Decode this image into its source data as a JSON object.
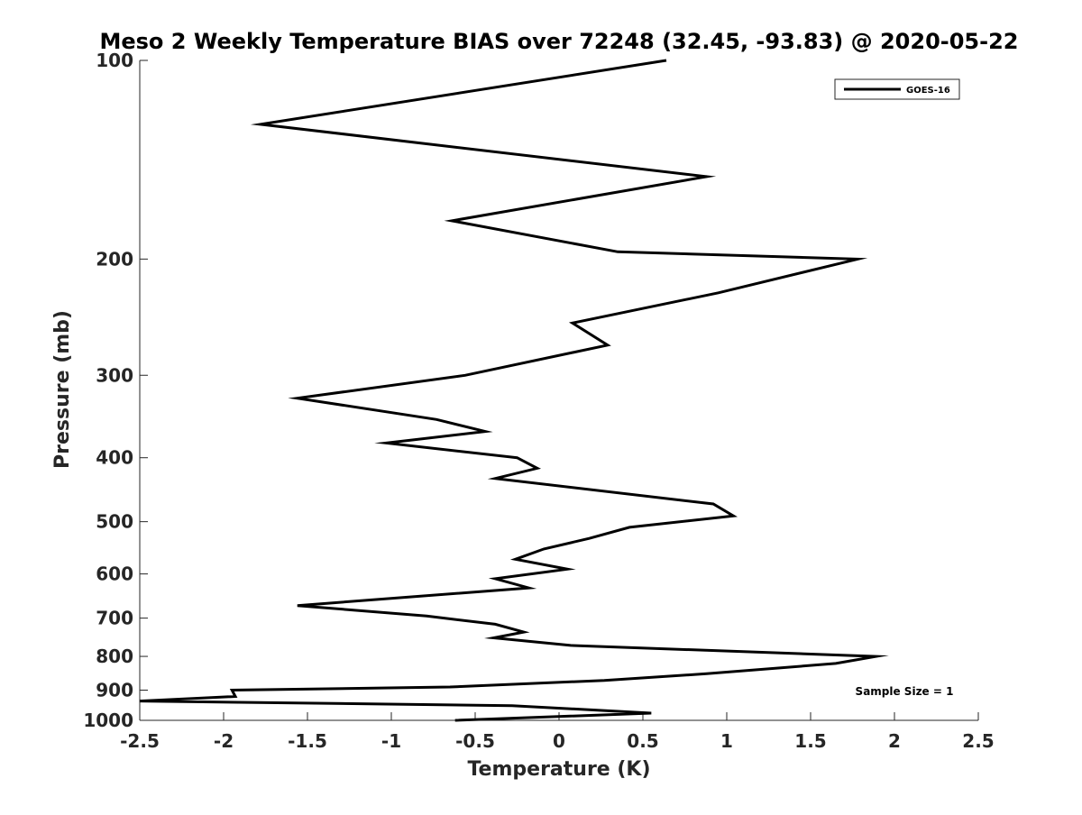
{
  "chart_data": {
    "type": "line",
    "title": "Meso 2 Weekly Temperature BIAS over 72248 (32.45, -93.83) @ 2020-05-22",
    "xlabel": "Temperature (K)",
    "ylabel": "Pressure (mb)",
    "xlim": [
      -2.5,
      2.5
    ],
    "ylim": [
      100,
      1000
    ],
    "y_scale": "log",
    "y_reversed": true,
    "grid": false,
    "legend_position": "top-right",
    "x_ticks": [
      -2.5,
      -2,
      -1.5,
      -1,
      -0.5,
      0,
      0.5,
      1,
      1.5,
      2,
      2.5
    ],
    "x_tick_labels": [
      "-2.5",
      "-2",
      "-1.5",
      "-1",
      "-0.5",
      "0",
      "0.5",
      "1",
      "1.5",
      "2",
      "2.5"
    ],
    "y_ticks": [
      100,
      200,
      300,
      400,
      500,
      600,
      700,
      800,
      900,
      1000
    ],
    "y_tick_labels": [
      "100",
      "200",
      "300",
      "400",
      "500",
      "600",
      "700",
      "800",
      "900",
      "1000"
    ],
    "series": [
      {
        "name": "GOES-16",
        "color": "#000000",
        "points": [
          {
            "x": 0.64,
            "y": 100
          },
          {
            "x": -1.78,
            "y": 125
          },
          {
            "x": 0.88,
            "y": 150
          },
          {
            "x": -0.64,
            "y": 175
          },
          {
            "x": 0.35,
            "y": 195
          },
          {
            "x": 1.78,
            "y": 200
          },
          {
            "x": 0.95,
            "y": 225
          },
          {
            "x": 0.08,
            "y": 250
          },
          {
            "x": 0.29,
            "y": 270
          },
          {
            "x": -0.56,
            "y": 300
          },
          {
            "x": -1.56,
            "y": 325
          },
          {
            "x": -0.73,
            "y": 350
          },
          {
            "x": -0.44,
            "y": 365
          },
          {
            "x": -1.03,
            "y": 380
          },
          {
            "x": -0.25,
            "y": 400
          },
          {
            "x": -0.13,
            "y": 415
          },
          {
            "x": -0.38,
            "y": 430
          },
          {
            "x": 0.92,
            "y": 470
          },
          {
            "x": 1.04,
            "y": 490
          },
          {
            "x": 0.42,
            "y": 510
          },
          {
            "x": 0.18,
            "y": 530
          },
          {
            "x": -0.09,
            "y": 550
          },
          {
            "x": -0.26,
            "y": 570
          },
          {
            "x": 0.05,
            "y": 590
          },
          {
            "x": -0.38,
            "y": 610
          },
          {
            "x": -0.18,
            "y": 630
          },
          {
            "x": -1.56,
            "y": 670
          },
          {
            "x": -0.79,
            "y": 695
          },
          {
            "x": -0.38,
            "y": 715
          },
          {
            "x": -0.21,
            "y": 735
          },
          {
            "x": -0.39,
            "y": 750
          },
          {
            "x": 0.07,
            "y": 770
          },
          {
            "x": 1.89,
            "y": 800
          },
          {
            "x": 1.65,
            "y": 820
          },
          {
            "x": 0.88,
            "y": 850
          },
          {
            "x": 0.27,
            "y": 870
          },
          {
            "x": -0.65,
            "y": 890
          },
          {
            "x": -1.95,
            "y": 900
          },
          {
            "x": -1.93,
            "y": 920
          },
          {
            "x": -2.5,
            "y": 935
          },
          {
            "x": -0.28,
            "y": 950
          },
          {
            "x": 0.55,
            "y": 975
          },
          {
            "x": -0.62,
            "y": 1000
          }
        ]
      }
    ],
    "legend": {
      "entries": [
        "GOES-16"
      ]
    },
    "annotations": [
      {
        "text": "Sample Size = 1"
      }
    ]
  }
}
